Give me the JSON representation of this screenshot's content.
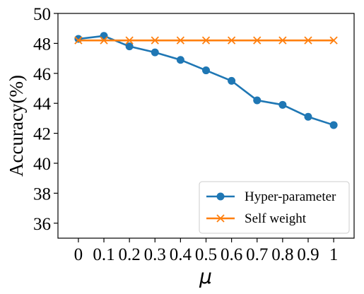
{
  "chart_data": {
    "type": "line",
    "categories": [
      "0",
      "0.1",
      "0.2",
      "0.3",
      "0.4",
      "0.5",
      "0.6",
      "0.7",
      "0.8",
      "0.9",
      "1"
    ],
    "x": [
      0,
      0.1,
      0.2,
      0.3,
      0.4,
      0.5,
      0.6,
      0.7,
      0.8,
      0.9,
      1.0
    ],
    "series": [
      {
        "name": "Hyper-parameter",
        "color": "#1f77b4",
        "marker": "circle",
        "values": [
          48.3,
          48.5,
          47.8,
          47.4,
          46.9,
          46.2,
          45.5,
          44.2,
          43.9,
          43.1,
          42.55
        ]
      },
      {
        "name": "Self weight",
        "color": "#ff7f0e",
        "marker": "x",
        "values": [
          48.2,
          48.2,
          48.2,
          48.2,
          48.2,
          48.2,
          48.2,
          48.2,
          48.2,
          48.2,
          48.2
        ]
      }
    ],
    "xlabel": "μ",
    "ylabel": "Accuracy(%)",
    "ylim": [
      35,
      50
    ],
    "yticks": [
      36,
      38,
      40,
      42,
      44,
      46,
      48,
      50
    ],
    "grid": false,
    "legend": "lower-right"
  }
}
